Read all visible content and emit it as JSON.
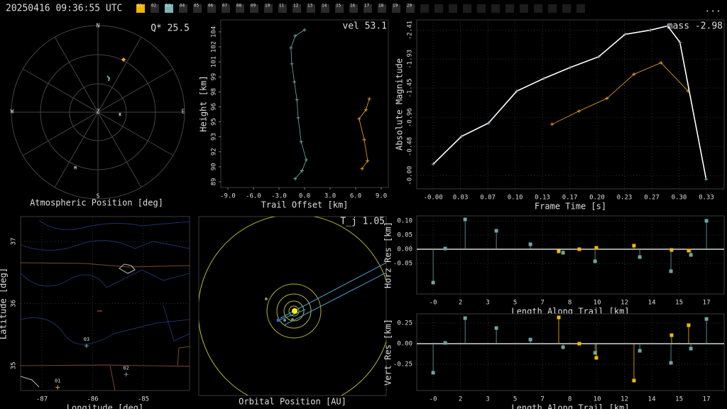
{
  "header": {
    "timestamp": "20250416 09:36:55 UTC",
    "menu": "...",
    "stations": [
      {
        "label": "01",
        "color": "#f7b500"
      },
      {
        "label": "02"
      },
      {
        "label": "03",
        "color": "#7fb3b3"
      },
      {
        "label": "04"
      },
      {
        "label": "05"
      },
      {
        "label": "06"
      },
      {
        "label": "07"
      },
      {
        "label": "08"
      },
      {
        "label": "09"
      },
      {
        "label": "10"
      },
      {
        "label": "11"
      },
      {
        "label": "12"
      },
      {
        "label": "13"
      },
      {
        "label": "14"
      },
      {
        "label": "15"
      },
      {
        "label": "16"
      },
      {
        "label": "17"
      },
      {
        "label": "18"
      },
      {
        "label": "19"
      },
      {
        "label": "20"
      }
    ]
  },
  "chart_data": [
    {
      "type": "polar",
      "title": "Atmospheric Position [deg]",
      "annotation": "Q* 25.5",
      "directions": [
        "N",
        "E",
        "S",
        "W",
        "Z"
      ],
      "labels": [
        "R",
        "M"
      ]
    },
    {
      "type": "line",
      "annotation": "vel 53.1",
      "xlabel": "Trail Offset [km]",
      "ylabel": "Height [km]",
      "xlim": [
        -9.83,
        9.83
      ],
      "ylim": [
        88.33,
        105.1
      ],
      "xticks": [
        {
          "value": -9,
          "label": "-9.0"
        },
        {
          "value": -6,
          "label": "-6.0"
        },
        {
          "value": -3,
          "label": "-3.0"
        },
        {
          "value": 0,
          "label": "0.0"
        },
        {
          "value": 3,
          "label": "3.0"
        },
        {
          "value": 6,
          "label": "6.0"
        },
        {
          "value": 9,
          "label": "9.0"
        }
      ],
      "yticks": [
        {
          "value": 88.9,
          "label": "89"
        },
        {
          "value": 90.4,
          "label": "90"
        },
        {
          "value": 91.9,
          "label": "92"
        },
        {
          "value": 93.4,
          "label": "93"
        },
        {
          "value": 94.9,
          "label": "95"
        },
        {
          "value": 96.4,
          "label": "96"
        },
        {
          "value": 97.9,
          "label": "98"
        },
        {
          "value": 99.4,
          "label": "99"
        },
        {
          "value": 100.9,
          "label": "101"
        },
        {
          "value": 102.4,
          "label": "102"
        },
        {
          "value": 103.9,
          "label": "104"
        }
      ],
      "grid": false,
      "rotate_yticks": true,
      "series": [
        {
          "color": "#6fb0aa",
          "x": [
            0.0,
            -1.1,
            -1.6,
            -1.5,
            -1.2,
            -0.9,
            -0.75,
            -0.4,
            0.2,
            -0.3,
            -1.1
          ],
          "y": [
            104.1,
            103.5,
            102.3,
            100.7,
            98.9,
            97.1,
            95.3,
            92.9,
            91.1,
            90.0,
            89.2
          ]
        },
        {
          "color": "#f5a623",
          "x": [
            7.6,
            7.2,
            6.4,
            7.0,
            7.4,
            6.75
          ],
          "y": [
            97.2,
            96.1,
            95.2,
            93.1,
            91.0,
            90.2
          ]
        }
      ]
    },
    {
      "type": "line",
      "annotation": "mass -2.98",
      "xlabel": "Frame Time [s]",
      "ylabel": "Absolute Magnitude",
      "xlim": [
        -0.02,
        0.355
      ],
      "ylim": [
        0.22,
        -2.58
      ],
      "xticks": [
        {
          "value": 0,
          "label": "-0.00"
        },
        {
          "value": 0.0333,
          "label": "0.03"
        },
        {
          "value": 0.0667,
          "label": "0.07"
        },
        {
          "value": 0.1,
          "label": "0.10"
        },
        {
          "value": 0.1333,
          "label": "0.13"
        },
        {
          "value": 0.1667,
          "label": "0.17"
        },
        {
          "value": 0.2,
          "label": "0.20"
        },
        {
          "value": 0.2333,
          "label": "0.23"
        },
        {
          "value": 0.2667,
          "label": "0.27"
        },
        {
          "value": 0.3,
          "label": "0.30"
        },
        {
          "value": 0.3333,
          "label": "0.33"
        }
      ],
      "yticks": [
        -2.41,
        -1.93,
        -1.45,
        -0.96,
        -0.48,
        {
          "value": 0,
          "label": "-0.00"
        }
      ],
      "grid": true,
      "rotate_yticks": true,
      "series": [
        {
          "color": "#ffffff",
          "x": [
            0,
            0.0346,
            0.0675,
            0.102,
            0.135,
            0.167,
            0.202,
            0.234,
            0.265,
            0.286,
            0.301,
            0.333
          ],
          "y": [
            -0.19,
            -0.65,
            -0.87,
            -1.4,
            -1.61,
            -1.79,
            -1.97,
            -2.34,
            -2.41,
            -2.48,
            -2.21,
            0.06
          ]
        },
        {
          "color": "#f5a623",
          "x": [
            0.145,
            0.178,
            0.212,
            0.245,
            0.278,
            0.311
          ],
          "y": [
            -0.85,
            -1.07,
            -1.28,
            -1.68,
            -1.87,
            -1.4
          ]
        }
      ]
    },
    {
      "type": "stem",
      "xlabel": "Length Along Trail [km]",
      "ylabel": "Horz Res [km]",
      "xlim": [
        -1.02,
        18.1
      ],
      "ylim": [
        -0.1575,
        0.1175
      ],
      "xticks": [
        {
          "value": 0,
          "label": "-0"
        },
        {
          "value": 1.7,
          "label": "2"
        },
        {
          "value": 3.4,
          "label": "3"
        },
        {
          "value": 5.1,
          "label": "5"
        },
        {
          "value": 6.8,
          "label": "7"
        },
        {
          "value": 8.5,
          "label": "8"
        },
        {
          "value": 10.2,
          "label": "10"
        },
        {
          "value": 11.9,
          "label": "12"
        },
        {
          "value": 13.6,
          "label": "14"
        },
        {
          "value": 15.3,
          "label": "15"
        },
        17
      ],
      "yticks": [
        {
          "value": 0.1,
          "label": "0.10"
        },
        {
          "value": 0.05,
          "label": "0.05"
        },
        {
          "value": 0,
          "label": "0.00"
        },
        {
          "value": -0.05,
          "label": "-0.05"
        }
      ],
      "grid": true,
      "series": [
        {
          "color": "#6fa3a3",
          "x": [
            0,
            0.75,
            1.99,
            3.93,
            6.05,
            8.08,
            10.07,
            12.85,
            14.79,
            16.03,
            17.0
          ],
          "y": [
            -0.1175,
            0.0025,
            0.105,
            0.065,
            0.0175,
            -0.0125,
            -0.0425,
            -0.0275,
            -0.0775,
            -0.02,
            0.1
          ]
        },
        {
          "color": "#f5b800",
          "x": [
            7.81,
            9.09,
            10.15,
            12.49,
            14.83,
            15.89
          ],
          "y": [
            -0.0075,
            0,
            0.005,
            0.0125,
            -0.0025,
            -0.005
          ]
        }
      ]
    },
    {
      "type": "stem",
      "xlabel": "Length Along Trail [km]",
      "ylabel": "Vert Res [km]",
      "xlim": [
        -1.02,
        18.1
      ],
      "ylim": [
        -0.569,
        0.362
      ],
      "xticks": [
        {
          "value": 0,
          "label": "-0"
        },
        {
          "value": 1.7,
          "label": "2"
        },
        {
          "value": 3.4,
          "label": "3"
        },
        {
          "value": 5.1,
          "label": "5"
        },
        {
          "value": 6.8,
          "label": "7"
        },
        {
          "value": 8.5,
          "label": "8"
        },
        {
          "value": 10.2,
          "label": "10"
        },
        {
          "value": 11.9,
          "label": "12"
        },
        {
          "value": 13.6,
          "label": "14"
        },
        {
          "value": 15.3,
          "label": "15"
        },
        17
      ],
      "yticks": [
        {
          "value": 0.25,
          "label": "0.25"
        },
        {
          "value": 0,
          "label": "0.00"
        },
        {
          "value": -0.25,
          "label": "-0.25"
        }
      ],
      "grid": true,
      "series": [
        {
          "color": "#6fa3a3",
          "x": [
            0,
            0.75,
            1.99,
            3.93,
            6.05,
            8.08,
            10.07,
            12.85,
            14.79,
            16.03,
            17.0
          ],
          "y": [
            -0.353,
            0.009,
            0.31,
            0.19,
            0.05,
            -0.043,
            -0.112,
            -0.086,
            -0.233,
            -0.06,
            0.3
          ]
        },
        {
          "color": "#f5b800",
          "x": [
            7.81,
            9.09,
            10.15,
            12.49,
            14.83,
            15.89
          ],
          "y": [
            0.319,
            0,
            -0.172,
            -0.448,
            0.103,
            0.224
          ]
        }
      ]
    },
    {
      "type": "map",
      "xlabel": "Longitude [deg]",
      "ylabel": "Latitude [deg]",
      "xlim": [
        -87.42,
        -84.09
      ],
      "ylim": [
        34.6,
        37.4
      ],
      "xticks": [
        -87,
        -86,
        -85
      ],
      "yticks": [
        35,
        36,
        37
      ],
      "grid": true,
      "rotate_yticks": true,
      "stations": [
        {
          "name": "01",
          "lon": -86.69,
          "lat": 34.65,
          "color": "#f5a623"
        },
        {
          "name": "02",
          "lon": -85.34,
          "lat": 34.86,
          "color": "#8a8a8a"
        },
        {
          "name": "03",
          "lon": -86.12,
          "lat": 35.32,
          "color": "#6fb0aa"
        }
      ]
    },
    {
      "type": "orbit",
      "title": "Orbital Position [AU]",
      "annotation": "T_j 1.05"
    }
  ]
}
